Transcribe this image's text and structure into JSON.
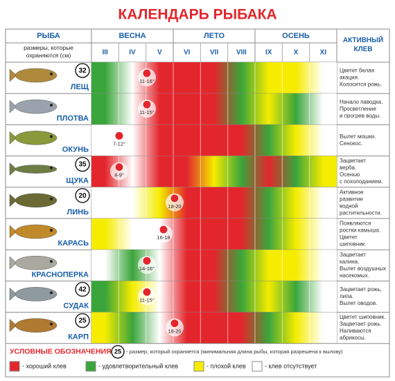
{
  "header": {
    "title": "КАЛЕНДАРЬ РЫБАКА",
    "fish": "РЫБА",
    "sizes_note": [
      "размеры, которые",
      "охраняются (см)"
    ],
    "seasons": [
      "ВЕСНА",
      "ЛЕТО",
      "ОСЕНЬ"
    ],
    "months": [
      "III",
      "IV",
      "V",
      "VI",
      "VII",
      "VIII",
      "IX",
      "X",
      "XI"
    ],
    "active": [
      "АКТИВНЫЙ",
      "КЛЕВ"
    ]
  },
  "table": {
    "rows": [
      {
        "name": "ЛЕЩ",
        "size": "32",
        "spawn": "11-16°",
        "bite": [
          "#3aa53a",
          "#ffffff",
          "#e3262c",
          "#e3262c",
          "#e3262c",
          "#3aa53a",
          "#f5ec00",
          "#f5ec00",
          "#ffffff"
        ],
        "note": [
          "Цветет белая",
          "акация.",
          "Колосится рожь."
        ]
      },
      {
        "name": "ПЛОТВА",
        "spawn": "11-15°",
        "bite": [
          "#3aa53a",
          "#ffffff",
          "#e3262c",
          "#e3262c",
          "#e3262c",
          "#3aa53a",
          "#f5ec00",
          "#3aa53a",
          "#ffffff"
        ],
        "note": [
          "Начало паводка.",
          "Просветление",
          "и прогрев воды."
        ]
      },
      {
        "name": "ОКУНЬ",
        "spawn": "7-12°",
        "bite": [
          "#ffffff",
          "#ffffff",
          "#e3262c",
          "#e3262c",
          "#e3262c",
          "#e3262c",
          "#3aa53a",
          "#f5ec00",
          "#ffffff"
        ],
        "note": [
          "Вылет мошки.",
          "Сенокос."
        ]
      },
      {
        "name": "ЩУКА",
        "size": "35",
        "spawn": "4-9°",
        "bite": [
          "#e3262c",
          "#ffffff",
          "#e3262c",
          "#e3262c",
          "#f5ec00",
          "#3aa53a",
          "#e3262c",
          "#3aa53a",
          "#f5ec00"
        ],
        "note": [
          "Зацветает",
          "верба.",
          "Осенью",
          "с похолоданием."
        ]
      },
      {
        "name": "ЛИНЬ",
        "size": "20",
        "spawn": "18-20",
        "bite": [
          "#ffffff",
          "#ffffff",
          "#f5ec00",
          "#e3262c",
          "#e3262c",
          "#e3262c",
          "#3aa53a",
          "#f5ec00",
          "#ffffff"
        ],
        "note": [
          "Активное",
          "развитие",
          "водной",
          "растительности."
        ]
      },
      {
        "name": "КАРАСЬ",
        "spawn": "16-18",
        "bite": [
          "#f5ec00",
          "#ffffff",
          "#ffffff",
          "#e3262c",
          "#e3262c",
          "#e3262c",
          "#3aa53a",
          "#f5ec00",
          "#ffffff"
        ],
        "note": [
          "Появляются",
          "ростки камыша.",
          "Цветет",
          "шиповник."
        ]
      },
      {
        "name": "КРАСНОПЕРКА",
        "spawn": "14-16°",
        "bite": [
          "#ffffff",
          "#3aa53a",
          "#ffffff",
          "#e3262c",
          "#e3262c",
          "#3aa53a",
          "#f5ec00",
          "#f5ec00",
          "#ffffff"
        ],
        "note": [
          "Зацветает",
          "калина.",
          "Вылет воздушных",
          "насекомых."
        ]
      },
      {
        "name": "СУДАК",
        "size": "42",
        "spawn": "11-15°",
        "bite": [
          "#3aa53a",
          "#f5ec00",
          "#ffffff",
          "#e3262c",
          "#e3262c",
          "#3aa53a",
          "#f5ec00",
          "#3aa53a",
          "#ffffff"
        ],
        "note": [
          "Зацветает рожь,",
          "липа.",
          "Вылет оводов."
        ]
      },
      {
        "name": "КАРП",
        "size": "25",
        "spawn": "18-20",
        "bite": [
          "#f5ec00",
          "#3aa53a",
          "#ffffff",
          "#e3262c",
          "#e3262c",
          "#e3262c",
          "#3aa53a",
          "#f5ec00",
          "#ffffff"
        ],
        "note": [
          "Цветет шиповник.",
          "Зацветает рожь.",
          "Наливаются",
          "абрикосы."
        ]
      }
    ]
  },
  "legend": {
    "title": "УСЛОВНЫЕ ОБОЗНАЧЕНИЯ:",
    "size": "25",
    "size_text": "- размер, который охраняется (минимальная длина рыбы, которая разрешена к вылову)",
    "items": [
      {
        "color": "#e3262c",
        "label": "- хороший клев"
      },
      {
        "color": "#3aa53a",
        "label": "- удовлетворительный клев"
      },
      {
        "color": "#f5ec00",
        "label": "- плохой клев"
      },
      {
        "color": "#ffffff",
        "label": "- клев отсутствует"
      }
    ]
  }
}
